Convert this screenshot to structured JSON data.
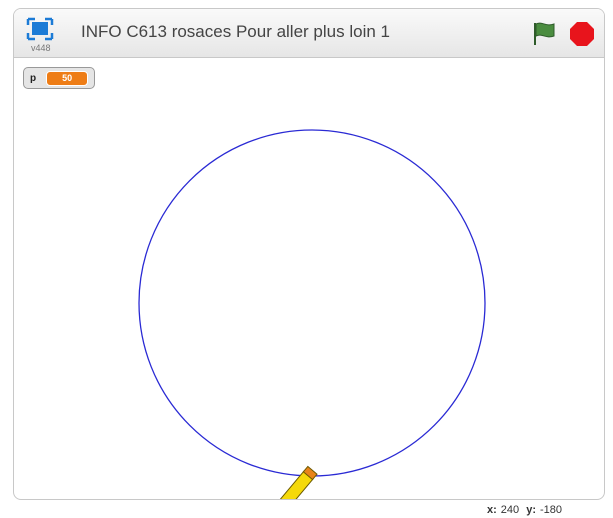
{
  "header": {
    "version": "v448",
    "title": "INFO C613 rosaces Pour aller plus loin 1"
  },
  "monitor": {
    "name": "p",
    "value": 50
  },
  "coordinates": {
    "x_label": "x:",
    "x": 240,
    "y_label": "y:",
    "y": -180
  }
}
